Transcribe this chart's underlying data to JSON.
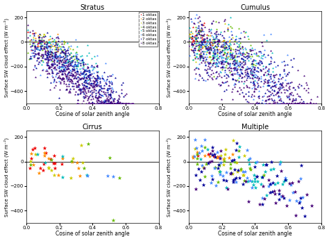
{
  "titles": [
    "Stratus",
    "Cumulus",
    "Cirrus",
    "Multiple"
  ],
  "xlabel": "Cosine of solar zenith angle",
  "ylabel": "Surface SW cloud effect (W m⁻²)",
  "xlim": [
    0,
    0.8
  ],
  "ylim": [
    -500,
    250
  ],
  "yticks": [
    -400,
    -200,
    0,
    200
  ],
  "xticks": [
    0,
    0.2,
    0.4,
    0.6,
    0.8
  ],
  "okta_labels": [
    "1 oktas",
    "2 oktas",
    "3 oktas",
    "4 oktas",
    "5 oktas",
    "6 oktas",
    "7 oktas",
    "8 oktas"
  ],
  "okta_colors": [
    "#EE0000",
    "#FF8C00",
    "#CCCC00",
    "#66BB00",
    "#00BBBB",
    "#4488FF",
    "#000099",
    "#440077"
  ],
  "background": "#ffffff",
  "seed": 7
}
